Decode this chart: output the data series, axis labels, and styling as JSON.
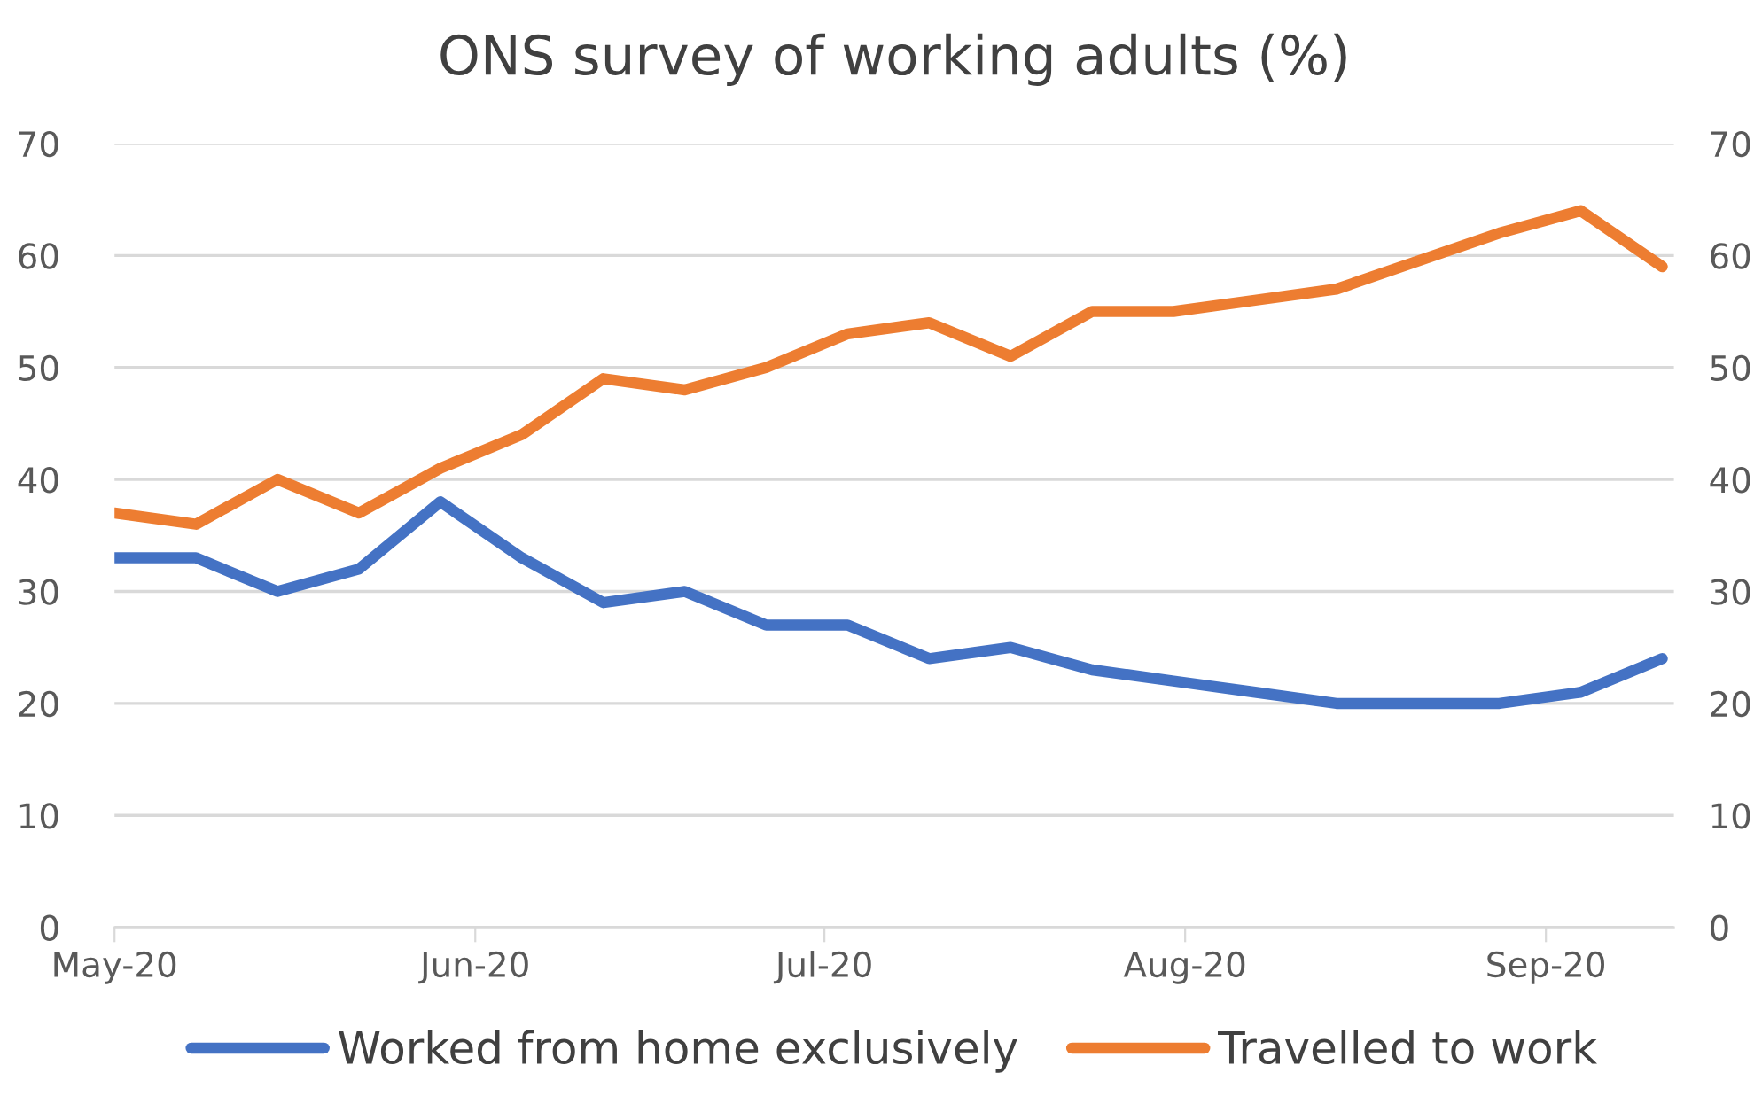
{
  "chart_data": {
    "type": "line",
    "title": "ONS survey of working adults (%)",
    "x": [
      "2020-05-01",
      "2020-05-08",
      "2020-05-15",
      "2020-05-22",
      "2020-05-29",
      "2020-06-05",
      "2020-06-12",
      "2020-06-19",
      "2020-06-26",
      "2020-07-03",
      "2020-07-10",
      "2020-07-17",
      "2020-07-24",
      "2020-07-31",
      "2020-08-07",
      "2020-08-14",
      "2020-08-21",
      "2020-08-28",
      "2020-09-04",
      "2020-09-11"
    ],
    "series": [
      {
        "name": "Worked from home exclusively",
        "color": "#4472c4",
        "values": [
          33,
          33,
          30,
          32,
          38,
          33,
          29,
          30,
          27,
          27,
          24,
          25,
          23,
          22,
          21,
          20,
          20,
          20,
          21,
          24
        ]
      },
      {
        "name": "Travelled to work",
        "color": "#ed7d31",
        "values": [
          37,
          36,
          40,
          37,
          41,
          44,
          49,
          48,
          50,
          53,
          54,
          51,
          55,
          55,
          56,
          57,
          59.5,
          62,
          64,
          59
        ]
      }
    ],
    "xlim": [
      "2020-05-01",
      "2020-09-12"
    ],
    "xticks": [
      {
        "value": "2020-05-01",
        "label": "May-20"
      },
      {
        "value": "2020-06-01",
        "label": "Jun-20"
      },
      {
        "value": "2020-07-01",
        "label": "Jul-20"
      },
      {
        "value": "2020-08-01",
        "label": "Aug-20"
      },
      {
        "value": "2020-09-01",
        "label": "Sep-20"
      }
    ],
    "ylim": [
      0,
      70
    ],
    "yticks": [
      0,
      10,
      20,
      30,
      40,
      50,
      60,
      70
    ],
    "y2lim": [
      0,
      70
    ],
    "y2ticks": [
      0,
      10,
      20,
      30,
      40,
      50,
      60,
      70
    ],
    "grid": "y",
    "legend": "bottom",
    "marker": "none",
    "line_style": "solid"
  }
}
